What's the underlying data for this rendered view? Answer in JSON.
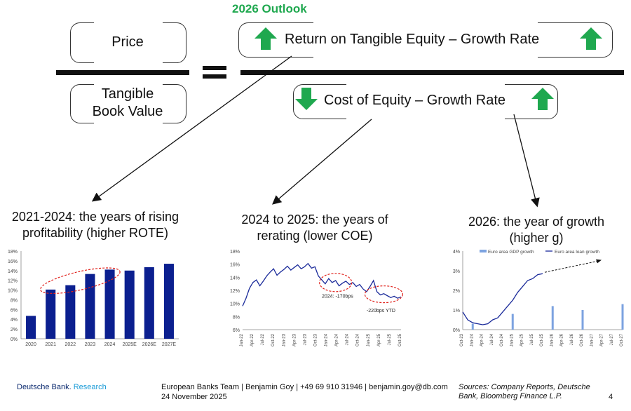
{
  "header": {
    "outlook": "2026 Outlook"
  },
  "formula": {
    "price": "Price",
    "tbv_line1": "Tangible",
    "tbv_line2": "Book Value",
    "numerator": "Return on Tangible Equity – Growth Rate",
    "denominator": "Cost of Equity – Growth Rate"
  },
  "colors": {
    "up": "#1fa84f",
    "down": "#1fa84f",
    "bar": "#0b1f8f",
    "line": "#1a2a9a",
    "annot": "#e0201a",
    "gdp": "#7da3e0"
  },
  "icons": {
    "up": "arrow-up-icon",
    "down": "arrow-down-icon"
  },
  "chart_data": [
    {
      "type": "bar",
      "title": "2021-2024: the years of rising profitability (higher ROTE)",
      "title_line1": "2021-2024: the years of rising",
      "title_line2": "profitability (higher ROTE)",
      "categories": [
        "2020",
        "2021",
        "2022",
        "2023",
        "2024",
        "2025E",
        "2026E",
        "2027E"
      ],
      "values": [
        4.7,
        10.1,
        11.0,
        13.3,
        14.2,
        14.0,
        14.7,
        15.4
      ],
      "ylim": [
        0,
        18
      ],
      "yticks": [
        "0%",
        "2%",
        "4%",
        "6%",
        "8%",
        "10%",
        "12%",
        "14%",
        "16%",
        "18%"
      ]
    },
    {
      "type": "line",
      "title": "2024 to 2025: the years of rerating (lower COE)",
      "title_line1": "2024 to 2025: the years of",
      "title_line2": "rerating (lower COE)",
      "ylim": [
        6,
        18
      ],
      "yticks": [
        "6%",
        "8%",
        "10%",
        "12%",
        "14%",
        "16%",
        "18%"
      ],
      "xticks": [
        "Jan-22",
        "Apr-22",
        "Jul-22",
        "Oct-22",
        "Jan-23",
        "Apr-23",
        "Jul-23",
        "Oct-23",
        "Jan-24",
        "Apr-24",
        "Jul-24",
        "Oct-24",
        "Jan-25",
        "Apr-25",
        "Jul-25",
        "Oct-25"
      ],
      "series": [
        {
          "name": "COE",
          "x": [
            0,
            1,
            2,
            3,
            4,
            5,
            6,
            7,
            8,
            9,
            10,
            11,
            12,
            13,
            14,
            15,
            16,
            17,
            18,
            19,
            20,
            21,
            22,
            23,
            24,
            25,
            26,
            27,
            28,
            29,
            30,
            31,
            32,
            33,
            34,
            35,
            36,
            37,
            38,
            39,
            40,
            41,
            42,
            43,
            44,
            45,
            46
          ],
          "values": [
            9.6,
            10.8,
            12.3,
            13.2,
            13.6,
            12.7,
            13.4,
            14.2,
            14.8,
            15.3,
            14.3,
            14.8,
            15.2,
            15.7,
            15.1,
            15.5,
            15.9,
            15.3,
            15.6,
            16.1,
            15.4,
            15.6,
            14.2,
            13.6,
            13.0,
            13.8,
            13.2,
            13.5,
            12.7,
            13.1,
            13.4,
            12.9,
            13.2,
            12.6,
            12.9,
            12.2,
            11.8,
            12.6,
            13.5,
            11.8,
            11.3,
            11.5,
            11.2,
            10.9,
            11.1,
            10.8,
            11.0
          ]
        }
      ],
      "annotations": [
        "2024: -170bps",
        "-220bps YTD"
      ]
    },
    {
      "type": "line",
      "title": "2026: the year of growth (higher g)",
      "title_line1": "2026: the year of growth",
      "title_line2": "(higher g)",
      "ylim": [
        0,
        4
      ],
      "yticks": [
        "0%",
        "1%",
        "2%",
        "3%",
        "4%"
      ],
      "xticks": [
        "Oct-23",
        "Jan-24",
        "Apr-24",
        "Jul-24",
        "Oct-24",
        "Jan-25",
        "Apr-25",
        "Jul-25",
        "Oct-25",
        "Jan-26",
        "Apr-26",
        "Jul-26",
        "Oct-26",
        "Jan-27",
        "Apr-27",
        "Jul-27",
        "Oct-27"
      ],
      "legend": [
        "Euro area GDP growth",
        "Euro area loan growth"
      ],
      "series": [
        {
          "name": "Euro area loan growth",
          "x": [
            0,
            0.5,
            1,
            1.5,
            2,
            2.5,
            3,
            3.5,
            4,
            4.5,
            5,
            5.5,
            6,
            6.5,
            7,
            7.5,
            8
          ],
          "values": [
            0.9,
            0.5,
            0.35,
            0.3,
            0.25,
            0.3,
            0.5,
            0.6,
            0.9,
            1.2,
            1.5,
            1.9,
            2.2,
            2.5,
            2.6,
            2.8,
            2.85
          ]
        },
        {
          "name": "Euro area GDP growth",
          "x": [
            1,
            5,
            9,
            12,
            16
          ],
          "values": [
            0.3,
            0.8,
            1.2,
            1.0,
            1.3
          ]
        }
      ]
    }
  ],
  "footer": {
    "brand1": "Deutsche Bank.",
    "brand2": "Research",
    "team": "European Banks Team | Benjamin Goy | +49 69 910 31946 | benjamin.goy@db.com",
    "date": "24 November 2025",
    "sources": "Sources: Company Reports, Deutsche Bank, Bloomberg Finance L.P.",
    "page": "4"
  }
}
